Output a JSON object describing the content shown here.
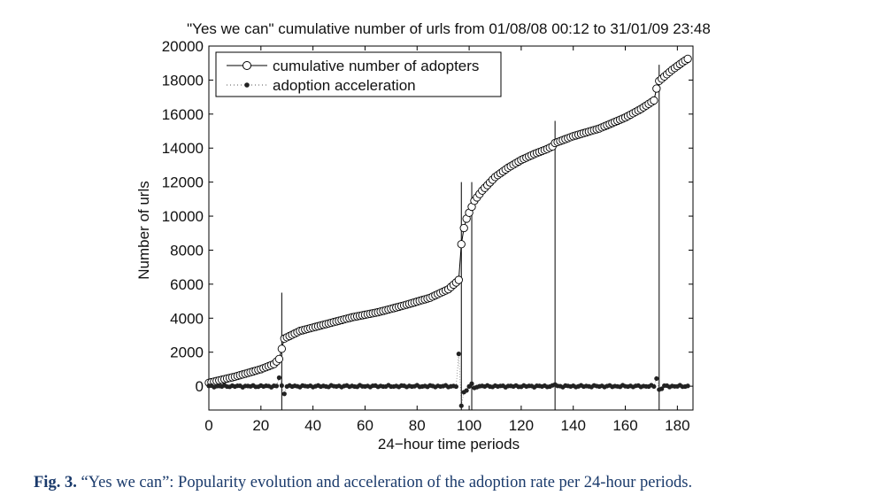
{
  "figure": {
    "caption_label": "Fig. 3.",
    "caption_text": "“Yes we can”: Popularity evolution and acceleration of the adoption rate per 24-hour periods.",
    "caption_color": "#1a3a6b"
  },
  "chart_data": {
    "type": "line",
    "title": "\"Yes we can\" cumulative number of urls from 01/08/08 00:12 to 31/01/09 23:48",
    "xlabel": "24−hour time periods",
    "ylabel": "Number of urls",
    "xlim": [
      0,
      186
    ],
    "ylim": [
      -1400,
      20000
    ],
    "xticks": [
      0,
      20,
      40,
      60,
      80,
      100,
      120,
      140,
      160,
      180
    ],
    "yticks": [
      0,
      2000,
      4000,
      6000,
      8000,
      10000,
      12000,
      14000,
      16000,
      18000,
      20000
    ],
    "grid": false,
    "legend_position": "top-left",
    "legend": [
      "cumulative number of adopters",
      "adoption acceleration"
    ],
    "series": [
      {
        "name": "cumulative number of adopters",
        "marker": "open-circle",
        "anchors": [
          [
            0,
            200
          ],
          [
            10,
            560
          ],
          [
            20,
            1000
          ],
          [
            25,
            1300
          ],
          [
            27,
            1600
          ],
          [
            28,
            2200
          ],
          [
            29,
            2800
          ],
          [
            35,
            3250
          ],
          [
            45,
            3650
          ],
          [
            55,
            4050
          ],
          [
            65,
            4350
          ],
          [
            75,
            4750
          ],
          [
            85,
            5200
          ],
          [
            92,
            5700
          ],
          [
            95,
            6100
          ],
          [
            96,
            6250
          ],
          [
            97,
            8350
          ],
          [
            98,
            9300
          ],
          [
            99,
            9850
          ],
          [
            100,
            10200
          ],
          [
            102,
            10900
          ],
          [
            105,
            11500
          ],
          [
            110,
            12300
          ],
          [
            115,
            12850
          ],
          [
            120,
            13300
          ],
          [
            125,
            13650
          ],
          [
            130,
            13950
          ],
          [
            132,
            14100
          ],
          [
            133,
            14300
          ],
          [
            140,
            14700
          ],
          [
            150,
            15150
          ],
          [
            160,
            15800
          ],
          [
            166,
            16300
          ],
          [
            170,
            16700
          ],
          [
            171,
            16800
          ],
          [
            172,
            17500
          ],
          [
            173,
            17950
          ],
          [
            178,
            18600
          ],
          [
            182,
            19050
          ],
          [
            184,
            19250
          ]
        ]
      },
      {
        "name": "adoption acceleration",
        "marker": "filled-dot",
        "base_amplitude": 40,
        "spikes": [
          [
            27,
            500
          ],
          [
            29,
            -450
          ],
          [
            96,
            1900
          ],
          [
            97,
            -1150
          ],
          [
            98,
            -350
          ],
          [
            99,
            -250
          ],
          [
            101,
            150
          ],
          [
            102,
            -100
          ],
          [
            133,
            100
          ],
          [
            172,
            450
          ],
          [
            173,
            -200
          ],
          [
            174,
            -150
          ]
        ]
      }
    ],
    "vertical_markers": [
      {
        "x": 28,
        "top": 5500
      },
      {
        "x": 97,
        "top": 12000
      },
      {
        "x": 101,
        "top": 12000
      },
      {
        "x": 133,
        "top": 15600
      },
      {
        "x": 173,
        "top": 18900
      }
    ]
  }
}
